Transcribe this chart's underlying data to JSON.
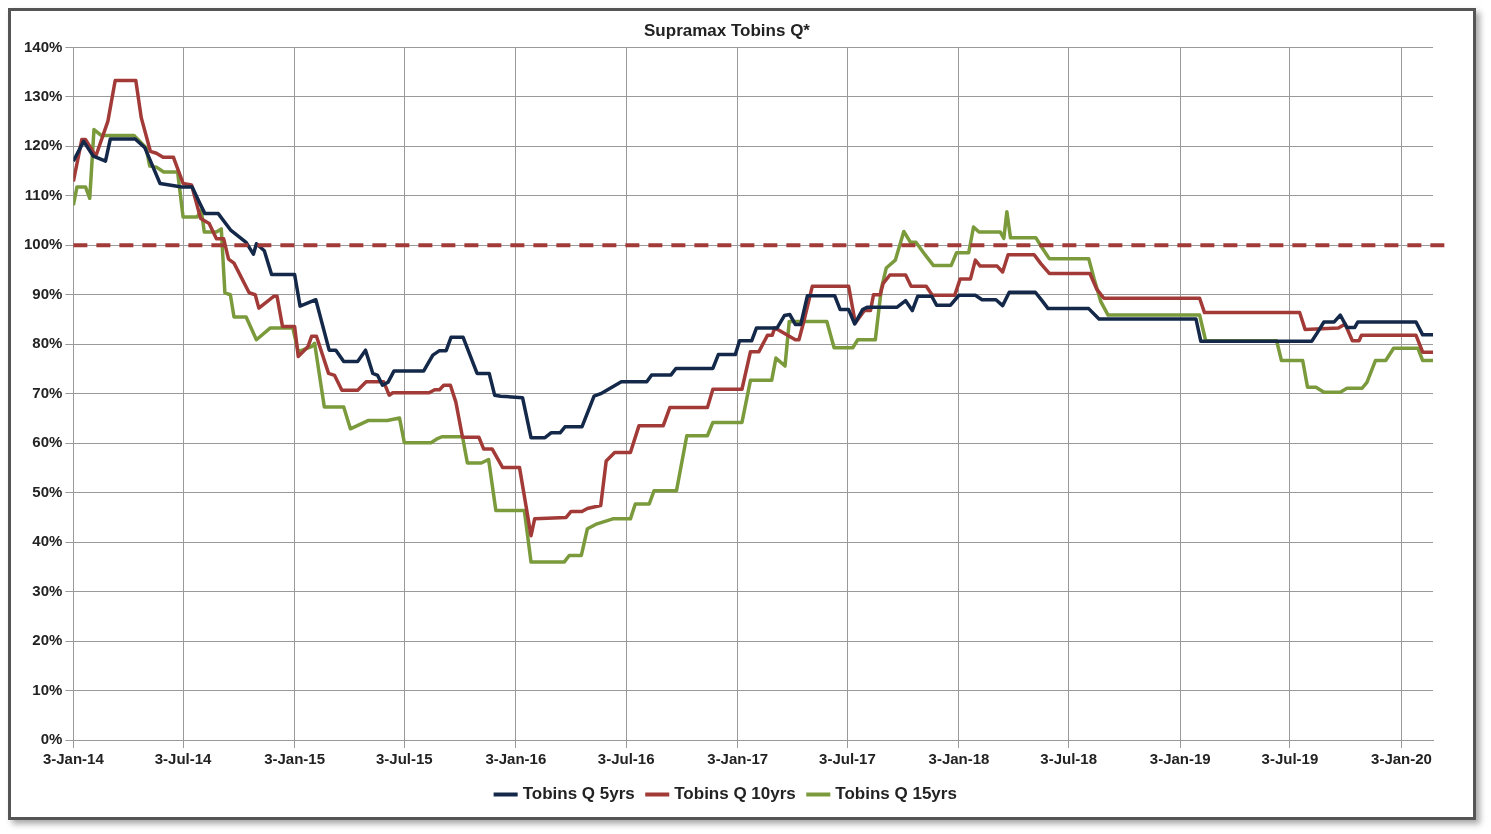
{
  "chart_data": {
    "type": "line",
    "title": "Supramax Tobins Q*",
    "grid": true,
    "legend": "bottom",
    "marker": "none",
    "line_style": "solid",
    "xlim": [
      "2014-01-03",
      "2020-02-24"
    ],
    "xticks": [
      {
        "value": "2014-01-03",
        "label": "3-Jan-14"
      },
      {
        "value": "2014-07-03",
        "label": "3-Jul-14"
      },
      {
        "value": "2015-01-03",
        "label": "3-Jan-15"
      },
      {
        "value": "2015-07-03",
        "label": "3-Jul-15"
      },
      {
        "value": "2016-01-03",
        "label": "3-Jan-16"
      },
      {
        "value": "2016-07-03",
        "label": "3-Jul-16"
      },
      {
        "value": "2017-01-03",
        "label": "3-Jan-17"
      },
      {
        "value": "2017-07-03",
        "label": "3-Jul-17"
      },
      {
        "value": "2018-01-03",
        "label": "3-Jan-18"
      },
      {
        "value": "2018-07-03",
        "label": "3-Jul-18"
      },
      {
        "value": "2019-01-03",
        "label": "3-Jan-19"
      },
      {
        "value": "2019-07-03",
        "label": "3-Jul-19"
      },
      {
        "value": "2020-01-03",
        "label": "3-Jan-20"
      }
    ],
    "ylim": [
      0,
      140
    ],
    "yticks": [
      {
        "value": 0,
        "label": "0%"
      },
      {
        "value": 10,
        "label": "10%"
      },
      {
        "value": 20,
        "label": "20%"
      },
      {
        "value": 30,
        "label": "30%"
      },
      {
        "value": 40,
        "label": "40%"
      },
      {
        "value": 50,
        "label": "50%"
      },
      {
        "value": 60,
        "label": "60%"
      },
      {
        "value": 70,
        "label": "70%"
      },
      {
        "value": 80,
        "label": "80%"
      },
      {
        "value": 90,
        "label": "90%"
      },
      {
        "value": 100,
        "label": "100%"
      },
      {
        "value": 110,
        "label": "110%"
      },
      {
        "value": 120,
        "label": "120%"
      },
      {
        "value": 130,
        "label": "130%"
      },
      {
        "value": 140,
        "label": "140%"
      }
    ],
    "ref_lines": [
      {
        "axis": "y",
        "value": 100,
        "color": "#a23b37",
        "line_style": "dashed"
      }
    ],
    "series": [
      {
        "name": "Tobins Q 5yrs",
        "color": "#14294a",
        "x": [
          "2014-01-03",
          "2014-01-20",
          "2014-02-05",
          "2014-02-25",
          "2014-03-05",
          "2014-04-15",
          "2014-05-01",
          "2014-05-26",
          "2014-07-01",
          "2014-07-18",
          "2014-07-31",
          "2014-08-08",
          "2014-08-30",
          "2014-09-20",
          "2014-10-15",
          "2014-10-27",
          "2014-11-01",
          "2014-11-14",
          "2014-11-26",
          "2015-01-03",
          "2015-01-12",
          "2015-02-07",
          "2015-03-01",
          "2015-03-12",
          "2015-03-25",
          "2015-04-17",
          "2015-04-30",
          "2015-05-12",
          "2015-05-20",
          "2015-05-28",
          "2015-06-06",
          "2015-06-16",
          "2015-08-04",
          "2015-08-19",
          "2015-08-30",
          "2015-09-10",
          "2015-09-18",
          "2015-10-08",
          "2015-10-31",
          "2015-11-20",
          "2015-11-29",
          "2015-12-09",
          "2016-01-14",
          "2016-01-28",
          "2016-02-20",
          "2016-03-01",
          "2016-03-16",
          "2016-03-24",
          "2016-04-21",
          "2016-05-11",
          "2016-05-22",
          "2016-06-25",
          "2016-08-06",
          "2016-08-14",
          "2016-09-15",
          "2016-09-23",
          "2016-11-23",
          "2016-12-02",
          "2016-12-30",
          "2017-01-06",
          "2017-01-26",
          "2017-02-03",
          "2017-03-09",
          "2017-03-21",
          "2017-03-30",
          "2017-04-08",
          "2017-04-17",
          "2017-04-28",
          "2017-06-12",
          "2017-06-21",
          "2017-07-05",
          "2017-07-15",
          "2017-07-28",
          "2017-08-05",
          "2017-09-23",
          "2017-10-07",
          "2017-10-18",
          "2017-10-27",
          "2017-11-19",
          "2017-11-27",
          "2017-12-20",
          "2018-01-03",
          "2018-01-30",
          "2018-02-10",
          "2018-03-05",
          "2018-03-16",
          "2018-03-27",
          "2018-05-09",
          "2018-05-20",
          "2018-05-30",
          "2018-08-05",
          "2018-08-22",
          "2019-01-29",
          "2019-02-06",
          "2019-08-08",
          "2019-08-17",
          "2019-08-28",
          "2019-09-14",
          "2019-09-24",
          "2019-10-05",
          "2019-10-18",
          "2019-10-23",
          "2020-01-27",
          "2020-02-07",
          "2020-02-24"
        ],
        "values": [
          117,
          121,
          118,
          117,
          121.5,
          121.5,
          119.7,
          112.5,
          111.8,
          111.8,
          108.4,
          106.4,
          106.4,
          103,
          100.6,
          98.2,
          100.3,
          98.9,
          94.1,
          94.1,
          87.7,
          89,
          78.8,
          78.8,
          76.5,
          76.5,
          78.8,
          74.1,
          73.7,
          71.7,
          72.3,
          74.6,
          74.6,
          77.8,
          78.7,
          78.7,
          81.4,
          81.4,
          74.1,
          74.1,
          69.7,
          69.5,
          69.2,
          61.1,
          61.1,
          62.1,
          62.1,
          63.3,
          63.3,
          69.5,
          70,
          72.4,
          72.4,
          73.8,
          73.8,
          75.1,
          75.1,
          77.9,
          77.9,
          80.7,
          80.7,
          83.3,
          83.3,
          85.8,
          86,
          84,
          84,
          89.8,
          89.8,
          87,
          87,
          84.1,
          87,
          87.5,
          87.5,
          88.8,
          86.8,
          89.7,
          89.7,
          87.9,
          87.9,
          89.9,
          89.9,
          89,
          89,
          87.8,
          90.5,
          90.5,
          88.8,
          87.2,
          87.2,
          85.1,
          85.1,
          80.6,
          80.6,
          82.3,
          84.5,
          84.5,
          85.9,
          83.4,
          83.4,
          84.5,
          84.5,
          81.9,
          81.9
        ]
      },
      {
        "name": "Tobins Q 10yrs",
        "color": "#a23b37",
        "x": [
          "2014-01-03",
          "2014-01-17",
          "2014-01-23",
          "2014-02-09",
          "2014-03-01",
          "2014-03-13",
          "2014-04-16",
          "2014-04-25",
          "2014-05-10",
          "2014-05-20",
          "2014-05-31",
          "2014-06-17",
          "2014-07-03",
          "2014-07-17",
          "2014-08-01",
          "2014-08-15",
          "2014-08-27",
          "2014-09-08",
          "2014-09-16",
          "2014-09-25",
          "2014-10-20",
          "2014-10-30",
          "2014-11-05",
          "2014-11-30",
          "2014-12-05",
          "2014-12-14",
          "2015-01-03",
          "2015-01-09",
          "2015-01-25",
          "2015-01-31",
          "2015-02-08",
          "2015-02-28",
          "2015-03-10",
          "2015-03-22",
          "2015-04-17",
          "2015-05-01",
          "2015-05-30",
          "2015-06-08",
          "2015-06-14",
          "2015-08-13",
          "2015-08-22",
          "2015-08-30",
          "2015-09-06",
          "2015-09-17",
          "2015-09-26",
          "2015-10-07",
          "2015-11-03",
          "2015-11-11",
          "2015-11-25",
          "2015-12-12",
          "2016-01-09",
          "2016-01-28",
          "2016-02-03",
          "2016-03-26",
          "2016-04-03",
          "2016-04-21",
          "2016-04-30",
          "2016-05-22",
          "2016-05-31",
          "2016-06-14",
          "2016-07-10",
          "2016-07-24",
          "2016-09-02",
          "2016-09-13",
          "2016-11-14",
          "2016-11-23",
          "2017-01-10",
          "2017-01-24",
          "2017-02-07",
          "2017-02-21",
          "2017-03-01",
          "2017-03-05",
          "2017-03-10",
          "2017-04-08",
          "2017-04-14",
          "2017-04-22",
          "2017-05-06",
          "2017-07-05",
          "2017-07-16",
          "2017-07-31",
          "2017-08-10",
          "2017-08-15",
          "2017-08-26",
          "2017-08-31",
          "2017-09-11",
          "2017-10-07",
          "2017-10-16",
          "2017-11-10",
          "2017-11-20",
          "2017-12-27",
          "2018-01-05",
          "2018-01-22",
          "2018-01-30",
          "2018-02-07",
          "2018-03-07",
          "2018-03-16",
          "2018-03-25",
          "2018-05-07",
          "2018-05-18",
          "2018-06-01",
          "2018-08-07",
          "2018-08-18",
          "2018-08-30",
          "2019-02-04",
          "2019-02-12",
          "2019-07-19",
          "2019-07-28",
          "2019-09-21",
          "2019-10-02",
          "2019-10-14",
          "2019-10-25",
          "2019-10-29",
          "2020-01-27",
          "2020-02-07",
          "2020-02-24"
        ],
        "values": [
          112.9,
          121.4,
          121.4,
          118,
          125.1,
          133.3,
          133.3,
          125.8,
          119,
          118.6,
          117.8,
          117.8,
          112.5,
          112.2,
          105.4,
          104.4,
          101.3,
          101.3,
          97.2,
          96.4,
          90.4,
          90,
          87.3,
          89.7,
          89.7,
          83.6,
          83.6,
          77.5,
          79.5,
          81.6,
          81.6,
          74.1,
          73.7,
          70.7,
          70.7,
          72.4,
          72.4,
          69.7,
          70.2,
          70.2,
          70.8,
          70.8,
          71.7,
          71.7,
          68.3,
          61.2,
          61.2,
          58.8,
          58.8,
          55.1,
          55.1,
          41.3,
          44.7,
          45,
          46.2,
          46.2,
          46.8,
          47.4,
          56.4,
          58.1,
          58.1,
          63.5,
          63.5,
          67.2,
          67.2,
          70.9,
          70.9,
          78.5,
          78.5,
          81.8,
          81.8,
          83.3,
          83,
          80.9,
          80.9,
          84.6,
          91.7,
          91.7,
          84.3,
          86.8,
          86.8,
          90,
          90,
          92.3,
          94,
          94,
          91.7,
          91.7,
          89.9,
          89.9,
          93.2,
          93.2,
          97,
          95.8,
          95.8,
          94.6,
          98.1,
          98.1,
          96.3,
          94.3,
          94.3,
          91.2,
          89.3,
          89.3,
          86.4,
          86.4,
          83,
          83.3,
          84.1,
          80.7,
          80.7,
          81.8,
          81.8,
          78.4,
          78.4
        ]
      },
      {
        "name": "Tobins Q 15yrs",
        "color": "#7a9a3c",
        "x": [
          "2014-01-03",
          "2014-01-09",
          "2014-01-23",
          "2014-01-30",
          "2014-02-06",
          "2014-02-18",
          "2014-04-13",
          "2014-05-03",
          "2014-05-09",
          "2014-05-20",
          "2014-06-01",
          "2014-06-24",
          "2014-07-03",
          "2014-07-26",
          "2014-08-02",
          "2014-08-07",
          "2014-08-27",
          "2014-09-04",
          "2014-09-10",
          "2014-09-19",
          "2014-09-25",
          "2014-10-15",
          "2014-11-01",
          "2014-11-24",
          "2014-12-31",
          "2015-01-09",
          "2015-01-31",
          "2015-02-05",
          "2015-02-21",
          "2015-03-25",
          "2015-04-05",
          "2015-05-05",
          "2015-06-05",
          "2015-06-25",
          "2015-07-03",
          "2015-08-16",
          "2015-08-25",
          "2015-09-03",
          "2015-10-07",
          "2015-10-15",
          "2015-11-07",
          "2015-11-19",
          "2015-12-01",
          "2016-01-17",
          "2016-01-28",
          "2016-03-23",
          "2016-03-31",
          "2016-04-20",
          "2016-04-30",
          "2016-05-16",
          "2016-06-11",
          "2016-07-10",
          "2016-07-18",
          "2016-08-10",
          "2016-08-18",
          "2016-09-24",
          "2016-10-11",
          "2016-11-14",
          "2016-11-23",
          "2017-01-10",
          "2017-01-24",
          "2017-02-28",
          "2017-03-07",
          "2017-03-22",
          "2017-03-29",
          "2017-05-30",
          "2017-06-11",
          "2017-07-12",
          "2017-07-20",
          "2017-08-18",
          "2017-08-28",
          "2017-09-05",
          "2017-09-20",
          "2017-10-04",
          "2017-10-15",
          "2017-10-24",
          "2017-11-08",
          "2017-11-22",
          "2017-12-21",
          "2017-12-30",
          "2018-01-19",
          "2018-01-27",
          "2018-02-05",
          "2018-03-12",
          "2018-03-18",
          "2018-03-23",
          "2018-03-29",
          "2018-05-10",
          "2018-05-19",
          "2018-06-01",
          "2018-08-05",
          "2018-08-14",
          "2018-08-25",
          "2018-09-06",
          "2019-02-04",
          "2019-02-14",
          "2019-06-11",
          "2019-06-19",
          "2019-07-24",
          "2019-08-01",
          "2019-08-15",
          "2019-08-28",
          "2019-09-24",
          "2019-10-05",
          "2019-10-30",
          "2019-11-07",
          "2019-11-21",
          "2019-12-08",
          "2019-12-21",
          "2020-01-30",
          "2020-02-07",
          "2020-02-24"
        ],
        "values": [
          108.1,
          111.8,
          111.8,
          109.5,
          123.4,
          122.2,
          122.2,
          119.7,
          116,
          115.8,
          114.8,
          114.8,
          105.7,
          105.7,
          107.1,
          102.7,
          102.7,
          103.3,
          90.4,
          90,
          85.5,
          85.5,
          80.9,
          83.3,
          83.3,
          78.5,
          79.5,
          80.2,
          67.3,
          67.3,
          62.9,
          64.6,
          64.6,
          65.1,
          60.1,
          60.1,
          60.8,
          61.3,
          61.3,
          56,
          56,
          56.7,
          46.4,
          46.4,
          36,
          36,
          37.3,
          37.3,
          42.7,
          43.7,
          44.7,
          44.7,
          47.7,
          47.7,
          50.4,
          50.4,
          61.5,
          61.5,
          64.2,
          64.2,
          72.7,
          72.7,
          77.2,
          75.6,
          84.6,
          84.6,
          79.3,
          79.3,
          80.9,
          80.9,
          91.3,
          95.4,
          97,
          102.8,
          100.6,
          100.6,
          98.1,
          95.9,
          95.9,
          98.5,
          98.5,
          103.7,
          102.7,
          102.7,
          101.4,
          106.8,
          101.5,
          101.5,
          99.7,
          97.3,
          97.3,
          93.2,
          88.6,
          85.9,
          85.9,
          80.7,
          80.7,
          76.7,
          76.7,
          71.3,
          71.3,
          70.3,
          70.3,
          71.1,
          71.1,
          72.3,
          76.7,
          76.7,
          79.2,
          79.2,
          76.7,
          76.7
        ]
      }
    ]
  }
}
